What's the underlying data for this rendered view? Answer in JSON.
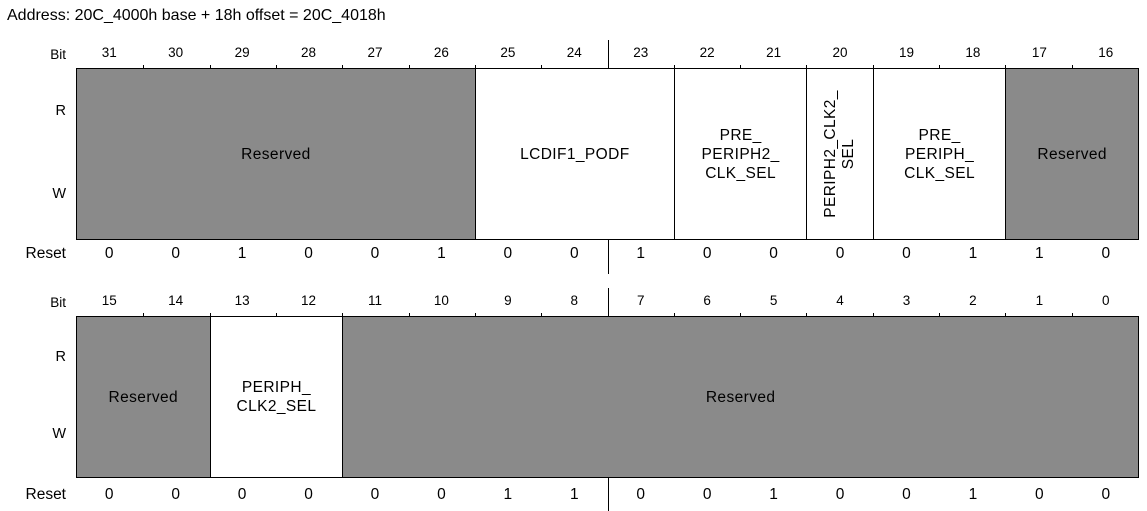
{
  "address_line": "Address: 20C_4000h base + 18h offset = 20C_4018h",
  "labels": {
    "bit": "Bit",
    "read": "R",
    "write": "W",
    "reset": "Reset"
  },
  "colors": {
    "reserved_fill": "#8a8a8a",
    "field_fill": "#ffffff",
    "line": "#000000",
    "background": "#ffffff"
  },
  "registers": [
    {
      "name": "bits-31-16",
      "bits": [
        "31",
        "30",
        "29",
        "28",
        "27",
        "26",
        "25",
        "24",
        "23",
        "22",
        "21",
        "20",
        "19",
        "18",
        "17",
        "16"
      ],
      "fields": [
        {
          "id": "reserved-31-26",
          "lines": [
            "Reserved"
          ],
          "span": 6,
          "reserved": true,
          "rotated": false
        },
        {
          "id": "lcdif1-podf",
          "lines": [
            "LCDIF1_PODF"
          ],
          "span": 3,
          "reserved": false,
          "rotated": false
        },
        {
          "id": "pre-periph2-clk-sel",
          "lines": [
            "PRE_",
            "PERIPH2_",
            "CLK_SEL"
          ],
          "span": 2,
          "reserved": false,
          "rotated": false
        },
        {
          "id": "periph2-clk2-sel",
          "lines": [
            "PERIPH2_CLK2_",
            "SEL"
          ],
          "span": 1,
          "reserved": false,
          "rotated": true
        },
        {
          "id": "pre-periph-clk-sel",
          "lines": [
            "PRE_",
            "PERIPH_",
            "CLK_SEL"
          ],
          "span": 2,
          "reserved": false,
          "rotated": false
        },
        {
          "id": "reserved-17-16",
          "lines": [
            "Reserved"
          ],
          "span": 2,
          "reserved": true,
          "rotated": false
        }
      ],
      "reset": [
        "0",
        "0",
        "1",
        "0",
        "0",
        "1",
        "0",
        "0",
        "1",
        "0",
        "0",
        "0",
        "0",
        "1",
        "1",
        "0"
      ]
    },
    {
      "name": "bits-15-0",
      "bits": [
        "15",
        "14",
        "13",
        "12",
        "11",
        "10",
        "9",
        "8",
        "7",
        "6",
        "5",
        "4",
        "3",
        "2",
        "1",
        "0"
      ],
      "fields": [
        {
          "id": "reserved-15-14",
          "lines": [
            "Reserved"
          ],
          "span": 2,
          "reserved": true,
          "rotated": false
        },
        {
          "id": "periph-clk2-sel",
          "lines": [
            "PERIPH_",
            "CLK2_SEL"
          ],
          "span": 2,
          "reserved": false,
          "rotated": false
        },
        {
          "id": "reserved-11-0",
          "lines": [
            "Reserved"
          ],
          "span": 12,
          "reserved": true,
          "rotated": false
        }
      ],
      "reset": [
        "0",
        "0",
        "0",
        "0",
        "0",
        "0",
        "1",
        "1",
        "0",
        "0",
        "1",
        "0",
        "0",
        "1",
        "0",
        "0"
      ]
    }
  ]
}
